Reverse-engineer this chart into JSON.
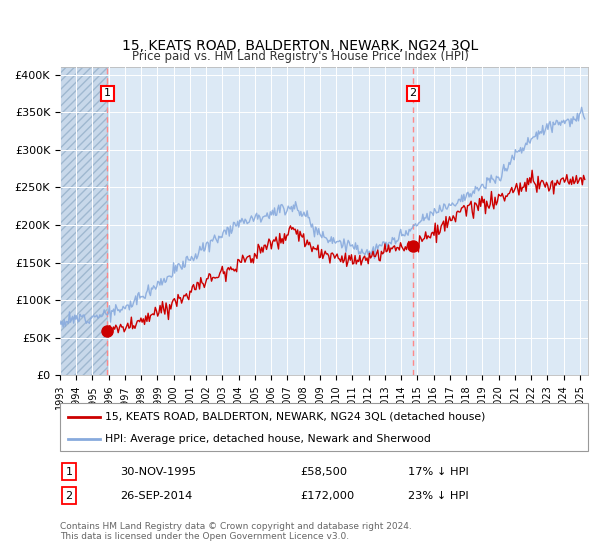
{
  "title": "15, KEATS ROAD, BALDERTON, NEWARK, NG24 3QL",
  "subtitle": "Price paid vs. HM Land Registry's House Price Index (HPI)",
  "background_color": "#dce9f5",
  "plot_bg_color": "#dce9f5",
  "red_line_color": "#cc0000",
  "blue_line_color": "#88aadd",
  "marker1_x": 1995.92,
  "marker1_y": 58500,
  "marker2_x": 2014.73,
  "marker2_y": 172000,
  "marker_color": "#cc0000",
  "dashed_line_color": "#ff8888",
  "ylim": [
    0,
    410000
  ],
  "xlim_start": 1993.0,
  "xlim_end": 2025.5,
  "yticks": [
    0,
    50000,
    100000,
    150000,
    200000,
    250000,
    300000,
    350000,
    400000
  ],
  "ytick_labels": [
    "£0",
    "£50K",
    "£100K",
    "£150K",
    "£200K",
    "£250K",
    "£300K",
    "£350K",
    "£400K"
  ],
  "xticks": [
    1993,
    1994,
    1995,
    1996,
    1997,
    1998,
    1999,
    2000,
    2001,
    2002,
    2003,
    2004,
    2005,
    2006,
    2007,
    2008,
    2009,
    2010,
    2011,
    2012,
    2013,
    2014,
    2015,
    2016,
    2017,
    2018,
    2019,
    2020,
    2021,
    2022,
    2023,
    2024,
    2025
  ],
  "legend_label_red": "15, KEATS ROAD, BALDERTON, NEWARK, NG24 3QL (detached house)",
  "legend_label_blue": "HPI: Average price, detached house, Newark and Sherwood",
  "annotation1": "1",
  "annotation2": "2",
  "footnote": "Contains HM Land Registry data © Crown copyright and database right 2024.\nThis data is licensed under the Open Government Licence v3.0.",
  "table_row1": [
    "1",
    "30-NOV-1995",
    "£58,500",
    "17% ↓ HPI"
  ],
  "table_row2": [
    "2",
    "26-SEP-2014",
    "£172,000",
    "23% ↓ HPI"
  ],
  "hatch_end_year": 1995.92
}
